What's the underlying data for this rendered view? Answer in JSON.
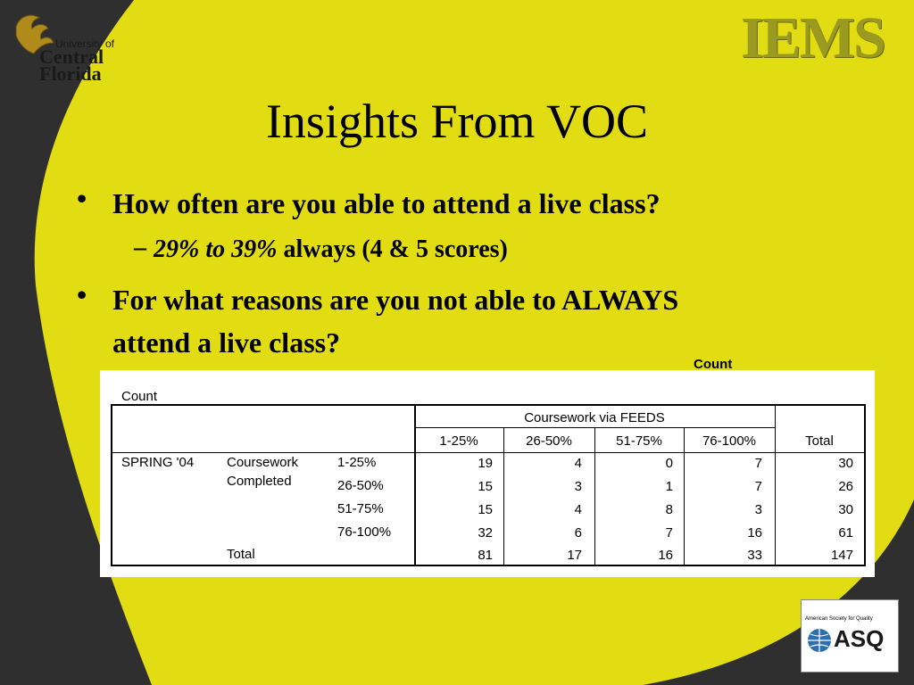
{
  "slide": {
    "title": "Insights From VOC",
    "bullets": [
      "How often are you able to attend a live class?",
      "For what reasons are you not able to ALWAYS",
      "attend a live class?"
    ],
    "sub_bullet": {
      "dash": "–",
      "italic_part": "29% to 39%",
      "rest": "always (4 & 5 scores)"
    },
    "bullet_mark": "•"
  },
  "logos": {
    "ucf_line1": "University of",
    "ucf_line2": "Central",
    "ucf_line3": "Florida",
    "iems": "IEMS",
    "asq_small": "American Society for Quality",
    "asq": "ASQ"
  },
  "colors": {
    "yellow": "#e2dc12",
    "dark": "#2f2f2f"
  },
  "table": {
    "count_overflow": "Count",
    "count_label": "Count",
    "col_group": "Coursework via FEEDS",
    "columns": [
      "1-25%",
      "26-50%",
      "51-75%",
      "76-100%"
    ],
    "total_header": "Total",
    "row_group": "SPRING '04",
    "row_var_line1": "Coursework",
    "row_var_line2": "Completed",
    "rows": [
      {
        "label": "1-25%",
        "values": [
          "19",
          "4",
          "0",
          "7"
        ],
        "total": "30"
      },
      {
        "label": "26-50%",
        "values": [
          "15",
          "3",
          "1",
          "7"
        ],
        "total": "26"
      },
      {
        "label": "51-75%",
        "values": [
          "15",
          "4",
          "8",
          "3"
        ],
        "total": "30"
      },
      {
        "label": "76-100%",
        "values": [
          "32",
          "6",
          "7",
          "16"
        ],
        "total": "61"
      }
    ],
    "total_row": {
      "label": "Total",
      "values": [
        "81",
        "17",
        "16",
        "33"
      ],
      "total": "147"
    }
  }
}
